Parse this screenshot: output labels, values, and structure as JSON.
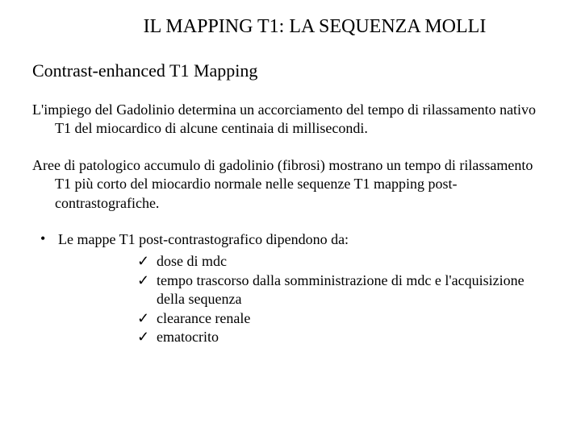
{
  "title": "IL MAPPING T1: LA SEQUENZA MOLLI",
  "subtitle": "Contrast-enhanced T1 Mapping",
  "para1": "L'impiego del Gadolinio determina un accorciamento del tempo di rilassamento nativo T1 del miocardico di alcune centinaia di millisecondi.",
  "para2": "Aree di patologico accumulo di gadolinio (fibrosi) mostrano un tempo di rilassamento T1 più corto del miocardio normale nelle sequenze T1 mapping post-contrastografiche.",
  "bullet": {
    "marker": "•",
    "text": "Le mappe T1 post-contrastografico dipendono da:"
  },
  "checks": {
    "mark": "✓",
    "item1": "dose di mdc",
    "item2": "tempo trascorso dalla somministrazione di mdc e l'acquisizione della sequenza",
    "item3": "clearance renale",
    "item4": "ematocrito"
  }
}
